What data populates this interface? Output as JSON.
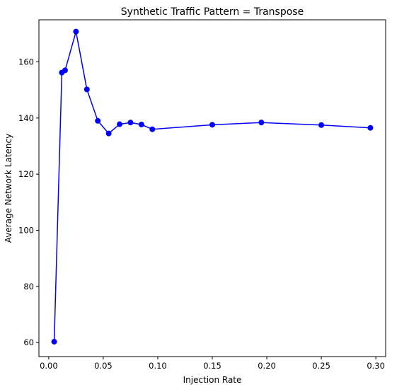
{
  "chart_data": {
    "type": "line",
    "title": "Synthetic Traffic Pattern = Transpose",
    "xlabel": "Injection Rate",
    "ylabel": "Average Network Latency",
    "xlim": [
      -0.009,
      0.309
    ],
    "ylim": [
      55,
      175
    ],
    "x_ticks": [
      0.0,
      0.05,
      0.1,
      0.15,
      0.2,
      0.25,
      0.3
    ],
    "x_tick_labels": [
      "0.00",
      "0.05",
      "0.10",
      "0.15",
      "0.20",
      "0.25",
      "0.30"
    ],
    "y_ticks": [
      60,
      80,
      100,
      120,
      140,
      160
    ],
    "y_tick_labels": [
      "60",
      "80",
      "100",
      "120",
      "140",
      "160"
    ],
    "grid": false,
    "color": "#0000ff",
    "series": [
      {
        "x": [
          0.005,
          0.012,
          0.015,
          0.025,
          0.035,
          0.045,
          0.055,
          0.065,
          0.075,
          0.085,
          0.095,
          0.15,
          0.195,
          0.25,
          0.295
        ],
        "values": [
          60.3,
          156.2,
          157.0,
          170.8,
          150.2,
          139.0,
          134.5,
          137.8,
          138.4,
          137.7,
          136.0,
          137.6,
          138.4,
          137.5,
          136.5
        ]
      }
    ]
  }
}
